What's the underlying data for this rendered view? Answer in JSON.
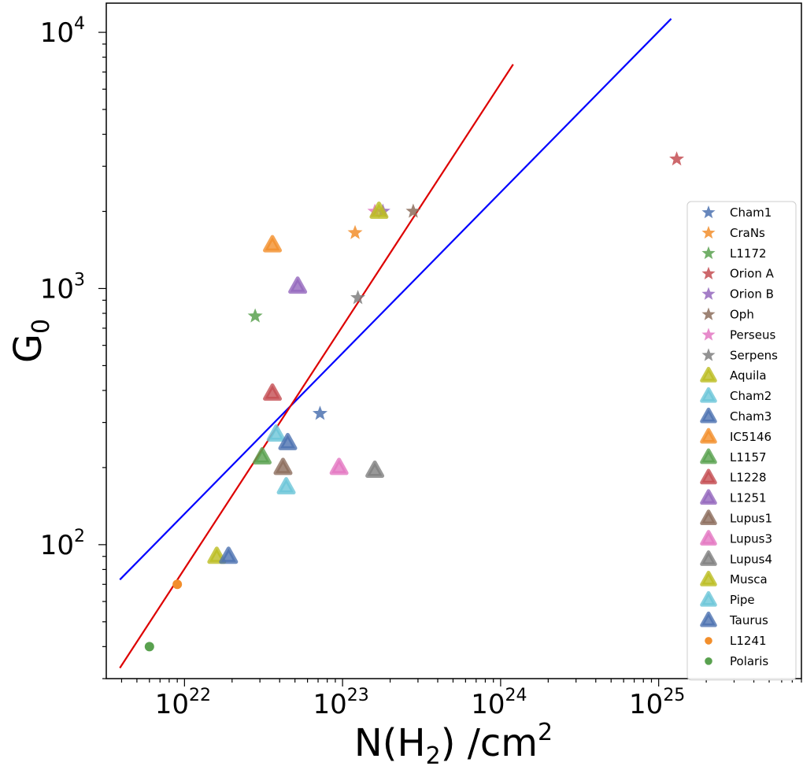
{
  "chart_data": {
    "type": "scatter",
    "xscale": "log",
    "yscale": "log",
    "xlim": [
      3.2e+21,
      8e+25
    ],
    "ylim": [
      30,
      13000
    ],
    "x_ticks": [
      {
        "value": 1e+22,
        "base": "10",
        "exp": "22"
      },
      {
        "value": 1e+23,
        "base": "10",
        "exp": "23"
      },
      {
        "value": 1e+24,
        "base": "10",
        "exp": "24"
      },
      {
        "value": 1e+25,
        "base": "10",
        "exp": "25"
      }
    ],
    "y_ticks": [
      {
        "value": 100,
        "base": "10",
        "exp": "2"
      },
      {
        "value": 1000,
        "base": "10",
        "exp": "3"
      },
      {
        "value": 10000,
        "base": "10",
        "exp": "4"
      }
    ],
    "xlabel": {
      "main": "N(H",
      "sub": "2",
      "tail": ") /cm",
      "sup": "2"
    },
    "ylabel": {
      "main": "G",
      "sub": "0"
    },
    "grid": false,
    "legend_position": "right",
    "fit_lines": [
      {
        "color": "#0000ff",
        "x": [
          3.9e+21,
          1.2e+25
        ],
        "y": [
          73,
          11300
        ]
      },
      {
        "color": "#dd0000",
        "x": [
          3.9e+21,
          1.2e+24
        ],
        "y": [
          33,
          7500
        ]
      }
    ],
    "series": [
      {
        "name": "Cham1",
        "marker": "star",
        "color": "#4c72b0",
        "points": [
          [
            7.2e+22,
            325
          ]
        ]
      },
      {
        "name": "CraNs",
        "marker": "star",
        "color": "#f28e2b",
        "points": [
          [
            1.2e+23,
            1650
          ]
        ]
      },
      {
        "name": "L1172",
        "marker": "star",
        "color": "#59a14f",
        "points": [
          [
            2.8e+22,
            780
          ]
        ]
      },
      {
        "name": "Orion A",
        "marker": "star",
        "color": "#c44e52",
        "points": [
          [
            1.3e+25,
            3200
          ]
        ]
      },
      {
        "name": "Orion B",
        "marker": "star",
        "color": "#9467bd",
        "points": [
          [
            1.8e+23,
            2000
          ]
        ]
      },
      {
        "name": "Oph",
        "marker": "star",
        "color": "#8c6d5c",
        "points": [
          [
            2.8e+23,
            2000
          ]
        ]
      },
      {
        "name": "Perseus",
        "marker": "star",
        "color": "#e377c2",
        "points": [
          [
            1.6e+23,
            2000
          ]
        ]
      },
      {
        "name": "Serpens",
        "marker": "star",
        "color": "#7f7f7f",
        "points": [
          [
            1.25e+23,
            920
          ]
        ]
      },
      {
        "name": "Aquila",
        "marker": "triangle",
        "color": "#bcbd22",
        "points": [
          [
            1.7e+23,
            2000
          ]
        ]
      },
      {
        "name": "Cham2",
        "marker": "triangle",
        "color": "#6cc6d8",
        "points": [
          [
            3.8e+22,
            270
          ]
        ]
      },
      {
        "name": "Cham3",
        "marker": "triangle",
        "color": "#4c72b0",
        "points": [
          [
            4.5e+22,
            250
          ]
        ]
      },
      {
        "name": "IC5146",
        "marker": "triangle",
        "color": "#f28e2b",
        "points": [
          [
            3.6e+22,
            1480
          ]
        ]
      },
      {
        "name": "L1157",
        "marker": "triangle",
        "color": "#59a14f",
        "points": [
          [
            3.1e+22,
            220
          ]
        ]
      },
      {
        "name": "L1228",
        "marker": "triangle",
        "color": "#c44e52",
        "points": [
          [
            3.6e+22,
            390
          ]
        ]
      },
      {
        "name": "L1251",
        "marker": "triangle",
        "color": "#9467bd",
        "points": [
          [
            5.2e+22,
            1020
          ]
        ]
      },
      {
        "name": "Lupus1",
        "marker": "triangle",
        "color": "#8c6d5c",
        "points": [
          [
            4.2e+22,
            200
          ]
        ]
      },
      {
        "name": "Lupus3",
        "marker": "triangle",
        "color": "#e377c2",
        "points": [
          [
            9.5e+22,
            200
          ]
        ]
      },
      {
        "name": "Lupus4",
        "marker": "triangle",
        "color": "#7f7f7f",
        "points": [
          [
            1.6e+23,
            195
          ]
        ]
      },
      {
        "name": "Musca",
        "marker": "triangle",
        "color": "#bcbd22",
        "points": [
          [
            1.6e+22,
            90
          ]
        ]
      },
      {
        "name": "Pipe",
        "marker": "triangle",
        "color": "#6cc6d8",
        "points": [
          [
            4.4e+22,
            168
          ]
        ]
      },
      {
        "name": "Taurus",
        "marker": "triangle",
        "color": "#4c72b0",
        "points": [
          [
            1.9e+22,
            90
          ]
        ]
      },
      {
        "name": "L1241",
        "marker": "circle",
        "color": "#f28e2b",
        "points": [
          [
            9e+21,
            70
          ]
        ]
      },
      {
        "name": "Polaris",
        "marker": "circle",
        "color": "#59a14f",
        "points": [
          [
            6e+21,
            40
          ]
        ]
      }
    ]
  }
}
